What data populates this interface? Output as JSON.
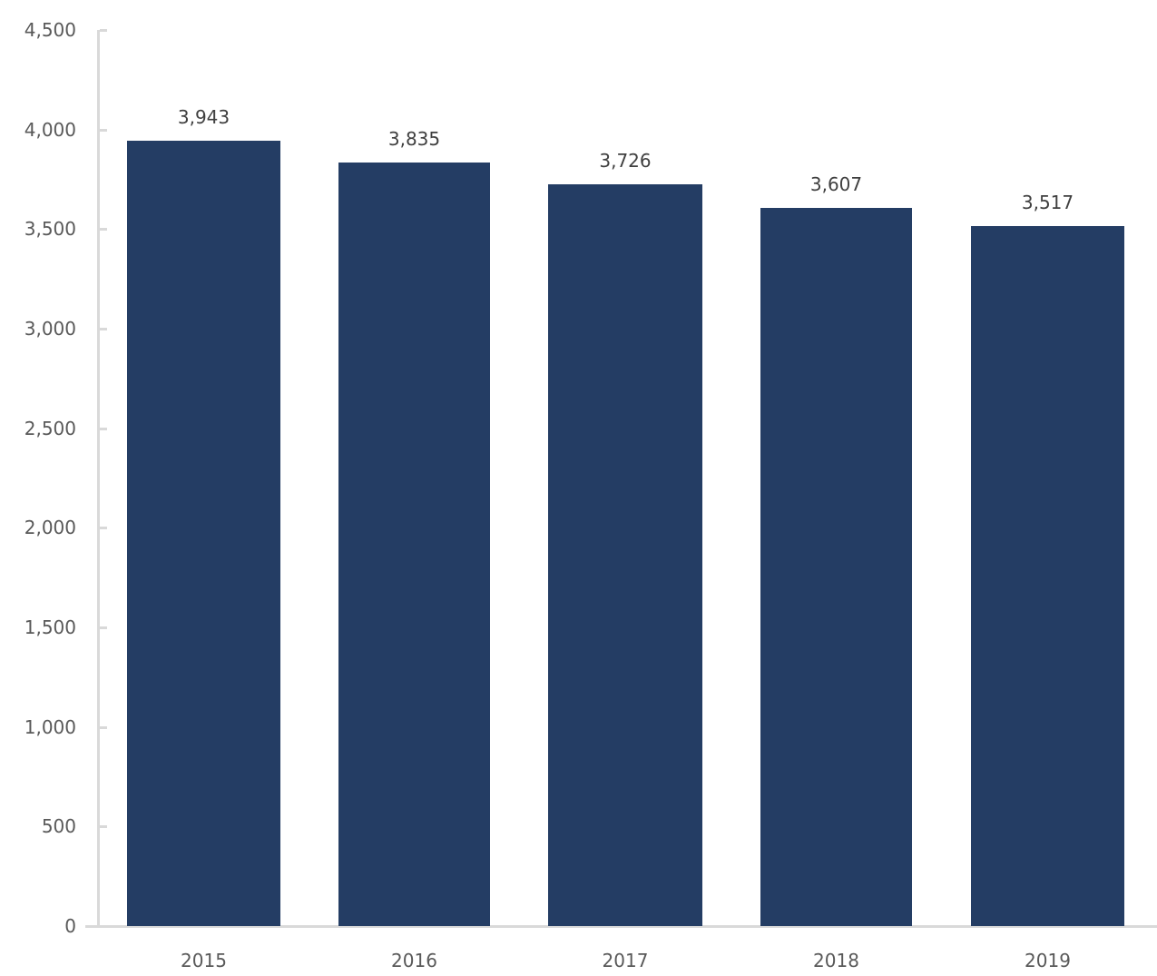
{
  "chart_data": {
    "type": "bar",
    "title": "",
    "xlabel": "",
    "ylabel": "",
    "categories": [
      "2015",
      "2016",
      "2017",
      "2018",
      "2019"
    ],
    "values": [
      3943,
      3835,
      3726,
      3607,
      3517
    ],
    "value_labels": [
      "3,943",
      "3,835",
      "3,726",
      "3,607",
      "3,517"
    ],
    "ylim": [
      0,
      4500
    ],
    "yticks": [
      0,
      500,
      1000,
      1500,
      2000,
      2500,
      3000,
      3500,
      4000,
      4500
    ],
    "ytick_labels": [
      "0",
      "500",
      "1,000",
      "1,500",
      "2,000",
      "2,500",
      "3,000",
      "3,500",
      "4,000",
      "4,500"
    ],
    "grid": false,
    "legend": null,
    "bar_color": "#243d64"
  }
}
